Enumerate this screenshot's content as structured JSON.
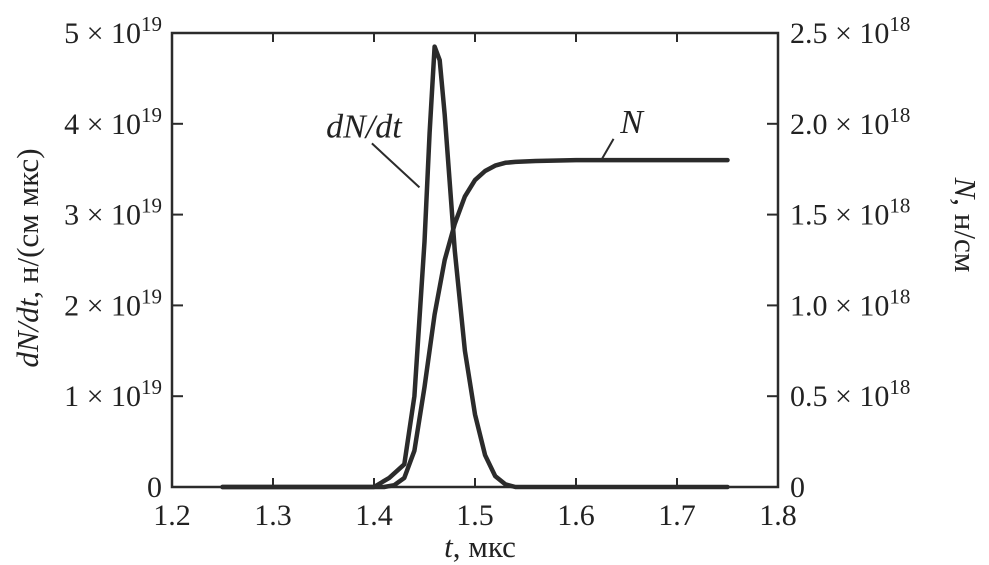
{
  "chart_data": {
    "type": "line",
    "xlabel": {
      "var": "t",
      "unit": ", мкс"
    },
    "ylabel_left": {
      "var": "dN/dt",
      "unit": ", н/(см мкс)"
    },
    "ylabel_right": {
      "var": "N",
      "unit": ", н/см"
    },
    "xlim": [
      1.2,
      1.8
    ],
    "xticks": [
      1.2,
      1.3,
      1.4,
      1.5,
      1.6,
      1.7,
      1.8
    ],
    "xtick_labels": [
      "1.2",
      "1.3",
      "1.4",
      "1.5",
      "1.6",
      "1.7",
      "1.8"
    ],
    "ylim_left": [
      0,
      5e+19
    ],
    "yticks_left": [
      {
        "value": 0,
        "label": "0"
      },
      {
        "value": 1e+19,
        "mant": "1",
        "exp": "19"
      },
      {
        "value": 2e+19,
        "mant": "2",
        "exp": "19"
      },
      {
        "value": 3e+19,
        "mant": "3",
        "exp": "19"
      },
      {
        "value": 4e+19,
        "mant": "4",
        "exp": "19"
      },
      {
        "value": 5e+19,
        "mant": "5",
        "exp": "19"
      }
    ],
    "ylim_right": [
      0,
      2.5e+18
    ],
    "yticks_right": [
      {
        "value": 0,
        "label": "0"
      },
      {
        "value": 5e+17,
        "mant": "0.5",
        "exp": "18"
      },
      {
        "value": 1e+18,
        "mant": "1.0",
        "exp": "18"
      },
      {
        "value": 1.5e+18,
        "mant": "1.5",
        "exp": "18"
      },
      {
        "value": 2e+18,
        "mant": "2.0",
        "exp": "18"
      },
      {
        "value": 2.5e+18,
        "mant": "2.5",
        "exp": "18"
      }
    ],
    "grid": false,
    "line_color": "#2b2b2b",
    "series": [
      {
        "name": "dN/dt",
        "axis": "left",
        "x": [
          1.25,
          1.4,
          1.415,
          1.43,
          1.44,
          1.45,
          1.455,
          1.46,
          1.465,
          1.47,
          1.48,
          1.49,
          1.5,
          1.51,
          1.52,
          1.53,
          1.54,
          1.55,
          1.75
        ],
        "y": [
          0,
          0,
          1e+18,
          2.5e+18,
          1e+19,
          2.7e+19,
          3.9e+19,
          4.85e+19,
          4.7e+19,
          4.1e+19,
          2.6e+19,
          1.5e+19,
          8e+18,
          3.5e+18,
          1.2e+18,
          3e+17,
          0,
          0,
          0
        ]
      },
      {
        "name": "N",
        "axis": "right",
        "x": [
          1.25,
          1.41,
          1.42,
          1.43,
          1.44,
          1.45,
          1.46,
          1.47,
          1.48,
          1.49,
          1.5,
          1.51,
          1.52,
          1.53,
          1.54,
          1.56,
          1.6,
          1.75
        ],
        "y": [
          0,
          0,
          1e+16,
          5e+16,
          2e+17,
          5.5e+17,
          9.5e+17,
          1.25e+18,
          1.45e+18,
          1.6e+18,
          1.69e+18,
          1.74e+18,
          1.77e+18,
          1.785e+18,
          1.79e+18,
          1.795e+18,
          1.8e+18,
          1.8e+18
        ]
      }
    ],
    "annotations": [
      {
        "text": "dN/dt",
        "series": "dN/dt",
        "at_x": 1.39,
        "at_y": 3.85e+19,
        "arrow_to_x": 1.445,
        "arrow_to_y": 3.3e+19
      },
      {
        "text": "N",
        "series": "N",
        "at_x": 1.655,
        "at_y": 1.95e+18,
        "arrow_to_x": 1.625,
        "arrow_to_y": 1.8e+18
      }
    ]
  }
}
